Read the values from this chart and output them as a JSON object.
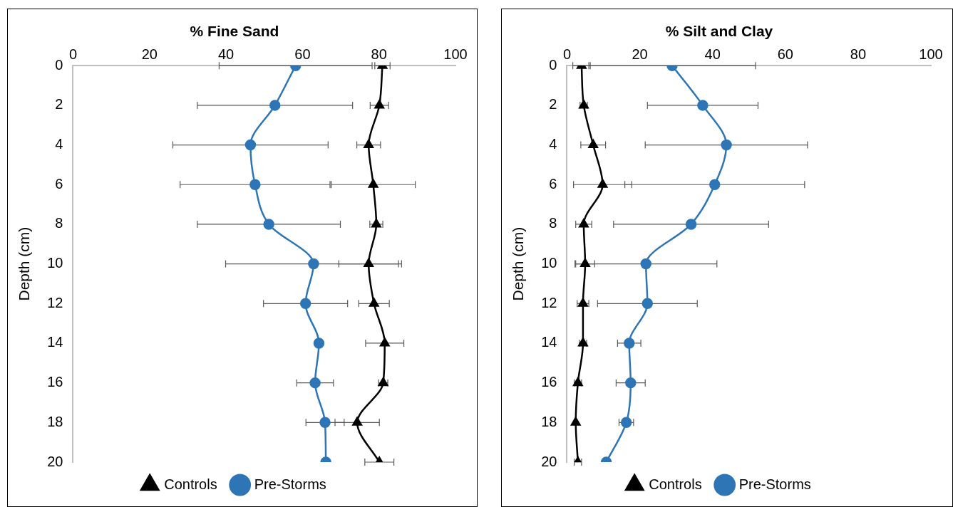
{
  "chart_data": [
    {
      "type": "line",
      "title": "% Fine Sand",
      "ylabel": "Depth (cm)",
      "xlim": [
        0,
        100
      ],
      "xticks": [
        0,
        20,
        40,
        60,
        80,
        100
      ],
      "ylim": [
        20,
        0
      ],
      "yticks": [
        0,
        2,
        4,
        6,
        8,
        10,
        12,
        14,
        16,
        18,
        20
      ],
      "grid": false,
      "legend": "bottom",
      "series": [
        {
          "name": "Controls",
          "color": "#000000",
          "marker": "triangle",
          "x": [
            80.9,
            80.1,
            77.3,
            78.5,
            79.3,
            77.3,
            78.7,
            81.5,
            81.1,
            74.3,
            80.1
          ],
          "values": [
            0,
            2,
            4,
            6,
            8,
            10,
            12,
            14,
            16,
            18,
            20
          ],
          "xerrors": [
            2,
            2.4,
            3.1,
            11,
            1.7,
            7.8,
            4,
            5,
            1.2,
            5.8,
            3.8
          ]
        },
        {
          "name": "Pre-Storms",
          "color": "#2e75b6",
          "marker": "circle",
          "x": [
            58.2,
            52.8,
            46.4,
            47.6,
            51.2,
            62.9,
            60.8,
            64.3,
            63.3,
            65.9,
            66.1
          ],
          "values": [
            0,
            2,
            4,
            6,
            8,
            10,
            12,
            14,
            16,
            18,
            20
          ],
          "xerrors": [
            20,
            20.3,
            20.3,
            19.6,
            18.7,
            23,
            11,
            null,
            4.8,
            5,
            null
          ]
        }
      ]
    },
    {
      "type": "line",
      "title": "% Silt and Clay",
      "ylabel": "Depth (cm)",
      "xlim": [
        0,
        100
      ],
      "xticks": [
        0,
        20,
        40,
        60,
        80,
        100
      ],
      "ylim": [
        20,
        0
      ],
      "yticks": [
        0,
        2,
        4,
        6,
        8,
        10,
        12,
        14,
        16,
        18,
        20
      ],
      "grid": false,
      "legend": "bottom",
      "series": [
        {
          "name": "Controls",
          "color": "#000000",
          "marker": "triangle",
          "x": [
            4.0,
            4.6,
            7.2,
            9.8,
            4.6,
            5.0,
            4.4,
            4.4,
            3.0,
            2.4,
            3.0
          ],
          "values": [
            0,
            2,
            4,
            6,
            8,
            10,
            12,
            14,
            16,
            18,
            20
          ],
          "xerrors": [
            2.4,
            1,
            3.4,
            8,
            2.2,
            2.6,
            1.6,
            1,
            1,
            null,
            1
          ]
        },
        {
          "name": "Pre-Storms",
          "color": "#2e75b6",
          "marker": "circle",
          "x": [
            28.9,
            37.3,
            43.8,
            40.6,
            34.1,
            21.7,
            22.1,
            17.1,
            17.5,
            16.3,
            10.8
          ],
          "values": [
            0,
            2,
            4,
            6,
            8,
            10,
            12,
            14,
            16,
            18,
            20
          ],
          "xerrors": [
            22.9,
            15.2,
            22.3,
            24.7,
            21.3,
            19.5,
            13.7,
            3.2,
            4,
            2,
            null
          ]
        }
      ]
    }
  ]
}
